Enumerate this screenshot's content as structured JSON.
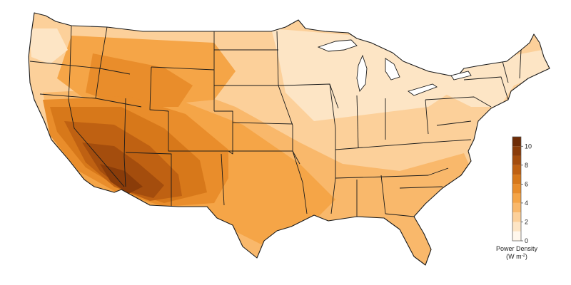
{
  "map": {
    "region": "Contiguous United States",
    "variable": "Power Density",
    "units_main": "(W m",
    "units_exp": "-2",
    "units_close": ")"
  },
  "legend": {
    "title": "Power Density",
    "ticks": [
      0,
      2,
      4,
      6,
      8,
      10
    ],
    "tick_labels": [
      "0",
      "2",
      "4",
      "6",
      "8",
      "10"
    ],
    "range": [
      0,
      11
    ],
    "bins": [
      {
        "from": 0,
        "to": 1,
        "color": "#fff7ec"
      },
      {
        "from": 1,
        "to": 2,
        "color": "#fde5c5"
      },
      {
        "from": 2,
        "to": 3,
        "color": "#fcd09a"
      },
      {
        "from": 3,
        "to": 4,
        "color": "#f9b86b"
      },
      {
        "from": 4,
        "to": 5,
        "color": "#f5a547"
      },
      {
        "from": 5,
        "to": 6,
        "color": "#e98d2b"
      },
      {
        "from": 6,
        "to": 7,
        "color": "#d7781a"
      },
      {
        "from": 7,
        "to": 8,
        "color": "#bf6112"
      },
      {
        "from": 8,
        "to": 9,
        "color": "#a44d0d"
      },
      {
        "from": 9,
        "to": 10,
        "color": "#8a3c09"
      },
      {
        "from": 10,
        "to": 11,
        "color": "#6e2c06"
      }
    ]
  },
  "colors": {
    "outline": "#1a1a1a",
    "background": "#ffffff"
  }
}
